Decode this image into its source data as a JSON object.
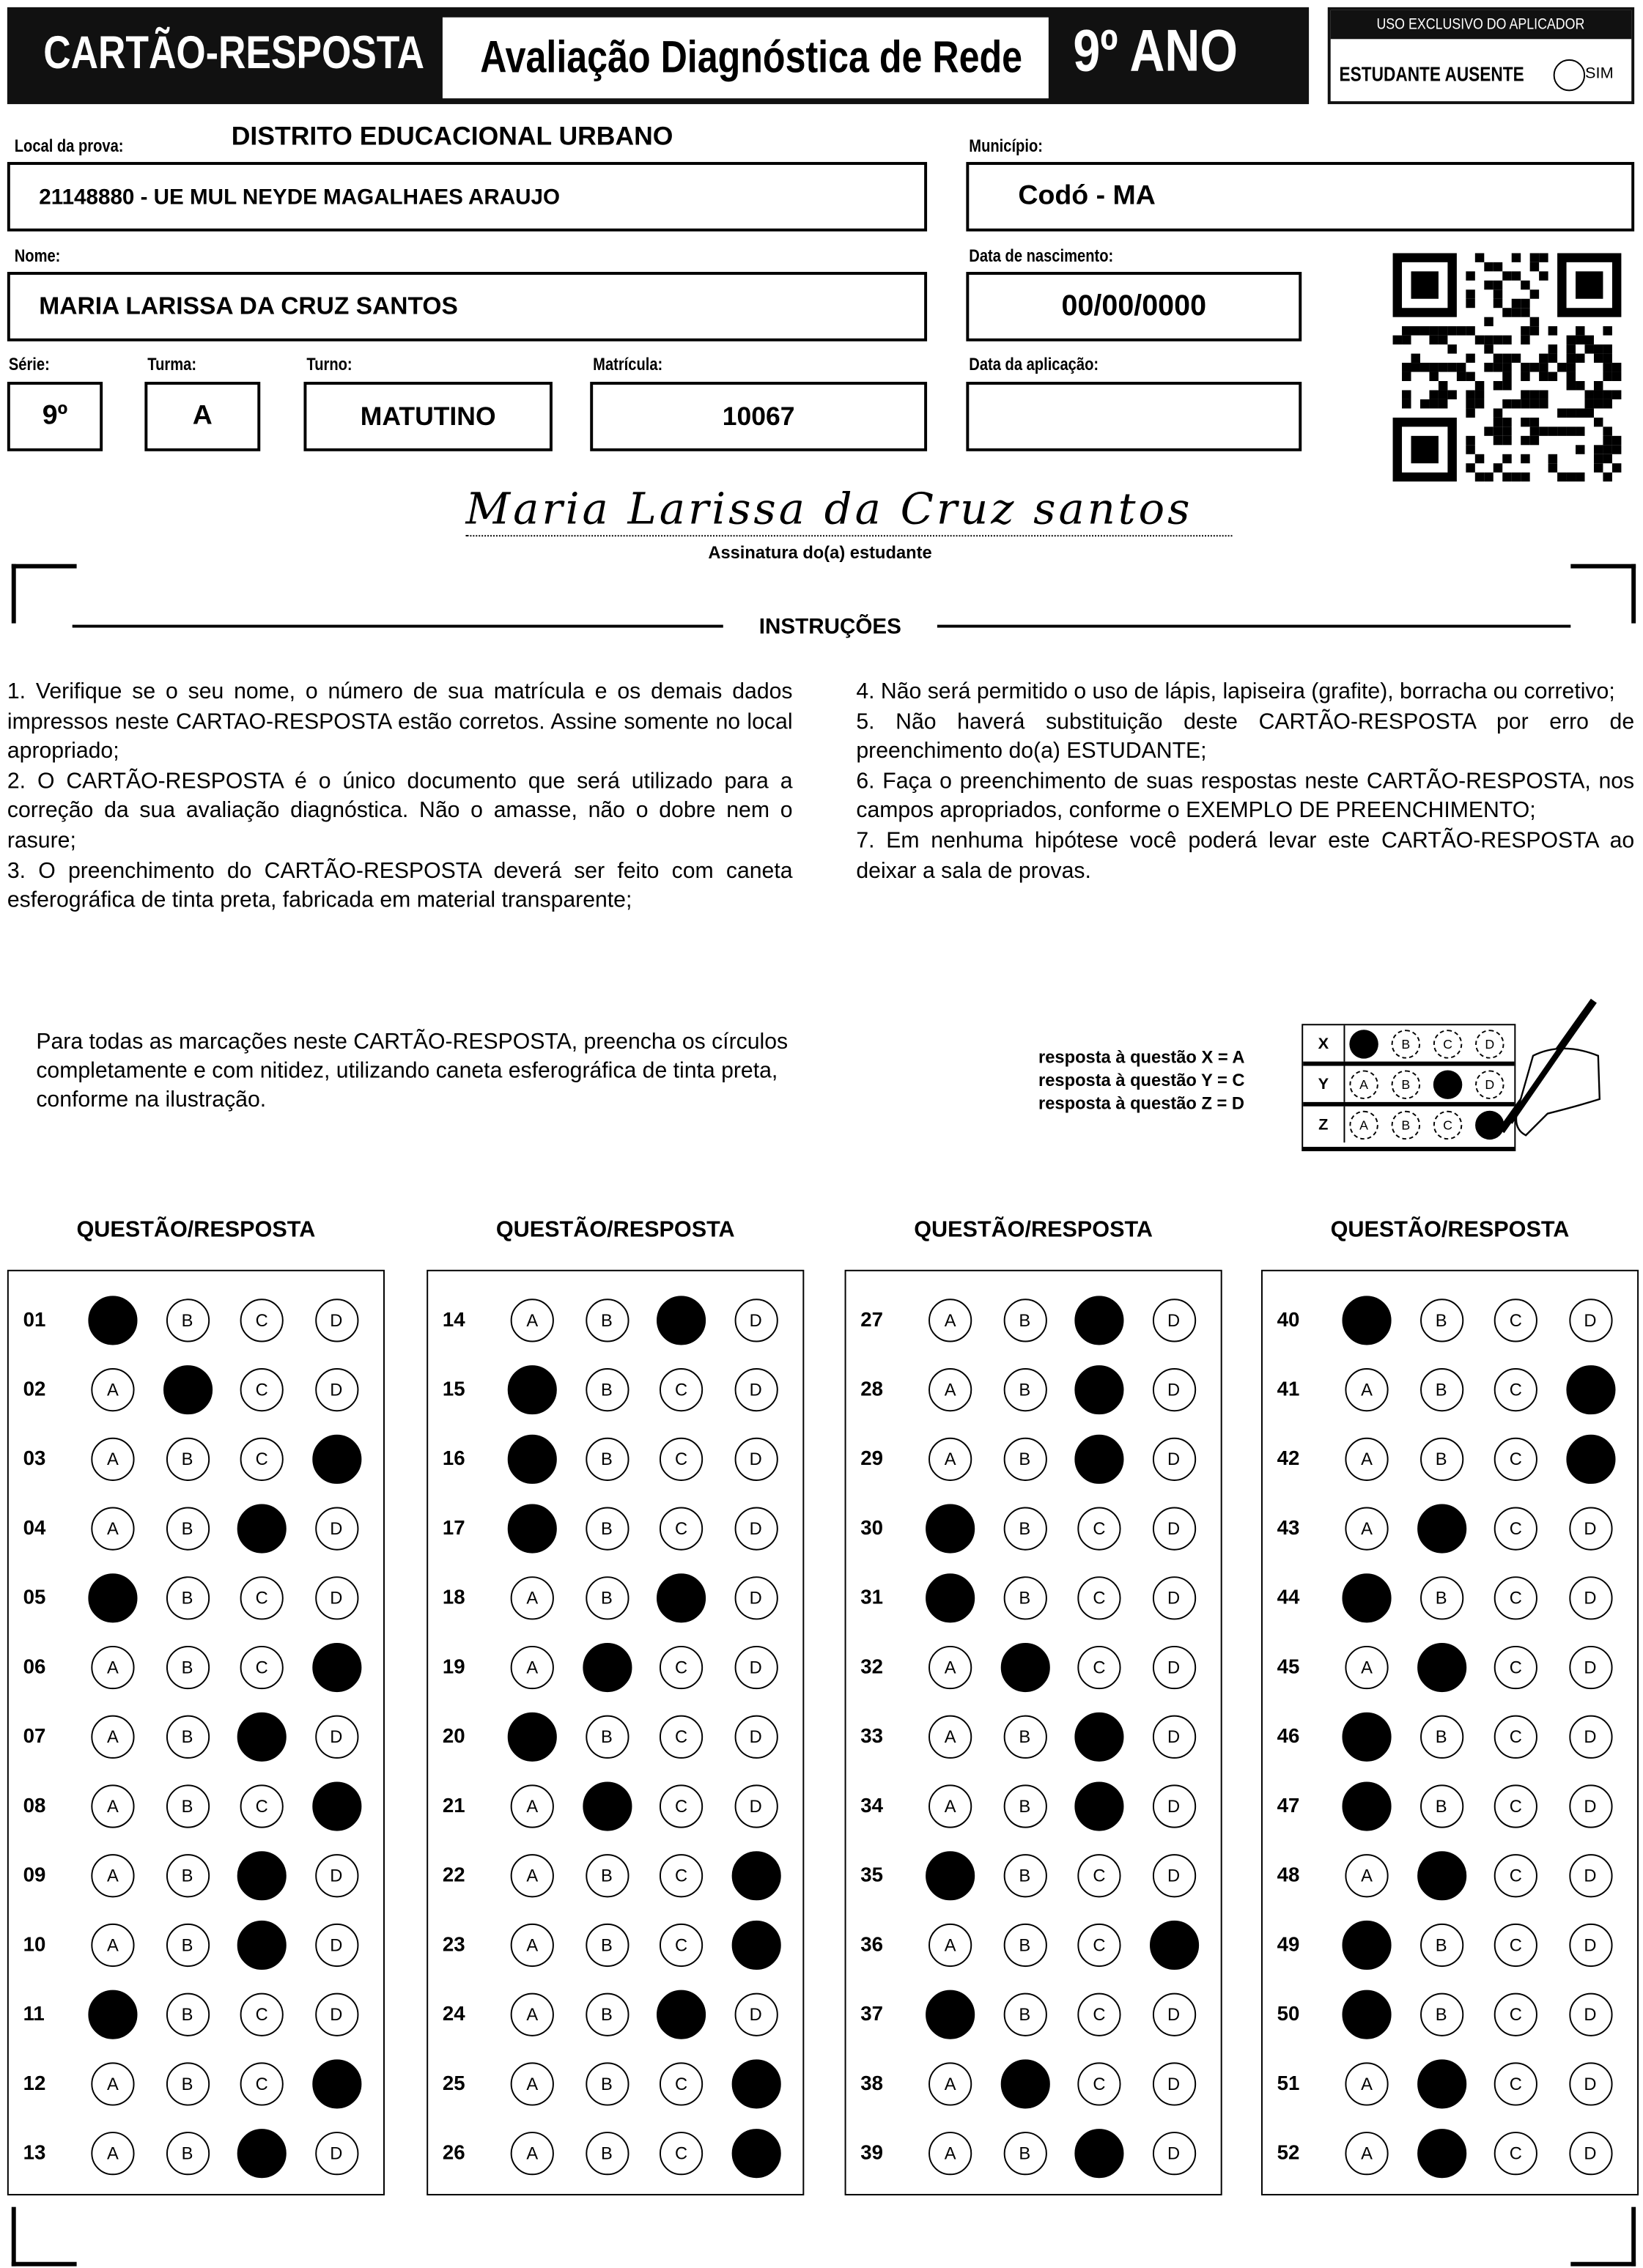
{
  "header": {
    "card_title": "CARTÃO-RESPOSTA",
    "exam_title": "Avaliação Diagnóstica de Rede",
    "grade": "9º ANO",
    "applicator_box_title": "USO EXCLUSIVO DO APLICADOR",
    "absent_label": "ESTUDANTE AUSENTE",
    "absent_option": "SIM"
  },
  "fields": {
    "district": "DISTRITO EDUCACIONAL URBANO",
    "local_label": "Local da prova:",
    "local_value": "21148880 - UE MUL NEYDE MAGALHAES ARAUJO",
    "municipio_label": "Município:",
    "municipio_value": "Codó - MA",
    "nome_label": "Nome:",
    "nome_value": "MARIA LARISSA DA CRUZ SANTOS",
    "nascimento_label": "Data de nascimento:",
    "nascimento_value": "00/00/0000",
    "serie_label": "Série:",
    "serie_value": "9º",
    "turma_label": "Turma:",
    "turma_value": "A",
    "turno_label": "Turno:",
    "turno_value": "MATUTINO",
    "matricula_label": "Matrícula:",
    "matricula_value": "10067",
    "aplicacao_label": "Data da aplicação:",
    "aplicacao_value": ""
  },
  "signature": {
    "handwritten": "Maria Larissa da Cruz santos",
    "caption": "Assinatura do(a) estudante"
  },
  "instructions": {
    "title": "INSTRUÇÕES",
    "left": [
      "1. Verifique se o seu nome, o número de sua matrícula e os demais dados impressos neste CARTAO-RESPOSTA estão corretos. Assine somente no local apropriado;",
      "2. O CARTÃO-RESPOSTA é o único documento que será utilizado para a correção da sua avaliação diagnóstica. Não o amasse, não o dobre nem o rasure;",
      "3. O preenchimento do CARTÃO-RESPOSTA deverá ser feito com caneta esferográfica de tinta preta, fabricada em material transparente;"
    ],
    "right": [
      "4. Não será permitido o uso de lápis, lapiseira (grafite), borracha ou corretivo;",
      "5. Não haverá substituição deste CARTÃO-RESPOSTA por erro de preenchimento do(a) ESTUDANTE;",
      "6. Faça o preenchimento de suas respostas neste CARTÃO-RESPOSTA, nos campos apropriados, conforme o EXEMPLO DE PREENCHIMENTO;",
      "7. Em nenhuma hipótese você poderá levar este CARTÃO-RESPOSTA ao deixar a sala de provas."
    ]
  },
  "example": {
    "text": "Para todas as marcações neste CARTÃO-RESPOSTA, preencha os círculos completamente e com nitidez, utilizando caneta esferográfica de tinta preta, conforme na ilustração.",
    "legend": [
      "resposta à questão X = A",
      "resposta à questão Y = C",
      "resposta à questão Z = D"
    ],
    "rows": [
      {
        "label": "X",
        "filled": "A"
      },
      {
        "label": "Y",
        "filled": "C"
      },
      {
        "label": "Z",
        "filled": "D"
      }
    ]
  },
  "options": [
    "A",
    "B",
    "C",
    "D"
  ],
  "column_header": "QUESTÃO/RESPOSTA",
  "answers": [
    [
      [
        "01",
        "A"
      ],
      [
        "02",
        "B"
      ],
      [
        "03",
        "D"
      ],
      [
        "04",
        "C"
      ],
      [
        "05",
        "A"
      ],
      [
        "06",
        "D"
      ],
      [
        "07",
        "C"
      ],
      [
        "08",
        "D"
      ],
      [
        "09",
        "C"
      ],
      [
        "10",
        "C"
      ],
      [
        "11",
        "A"
      ],
      [
        "12",
        "D"
      ],
      [
        "13",
        "C"
      ]
    ],
    [
      [
        "14",
        "C"
      ],
      [
        "15",
        "A"
      ],
      [
        "16",
        "A"
      ],
      [
        "17",
        "A"
      ],
      [
        "18",
        "C"
      ],
      [
        "19",
        "B"
      ],
      [
        "20",
        "A"
      ],
      [
        "21",
        "B"
      ],
      [
        "22",
        "D"
      ],
      [
        "23",
        "D"
      ],
      [
        "24",
        "C"
      ],
      [
        "25",
        "D"
      ],
      [
        "26",
        "D"
      ]
    ],
    [
      [
        "27",
        "C"
      ],
      [
        "28",
        "C"
      ],
      [
        "29",
        "C"
      ],
      [
        "30",
        "A"
      ],
      [
        "31",
        "A"
      ],
      [
        "32",
        "B"
      ],
      [
        "33",
        "C"
      ],
      [
        "34",
        "C"
      ],
      [
        "35",
        "A"
      ],
      [
        "36",
        "D"
      ],
      [
        "37",
        "A"
      ],
      [
        "38",
        "B"
      ],
      [
        "39",
        "C"
      ]
    ],
    [
      [
        "40",
        "A"
      ],
      [
        "41",
        "D"
      ],
      [
        "42",
        "D"
      ],
      [
        "43",
        "B"
      ],
      [
        "44",
        "A"
      ],
      [
        "45",
        "B"
      ],
      [
        "46",
        "A"
      ],
      [
        "47",
        "A"
      ],
      [
        "48",
        "B"
      ],
      [
        "49",
        "A"
      ],
      [
        "50",
        "A"
      ],
      [
        "51",
        "B"
      ],
      [
        "52",
        "B"
      ]
    ]
  ]
}
